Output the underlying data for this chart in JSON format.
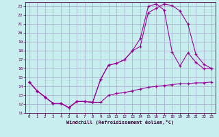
{
  "xlabel": "Windchill (Refroidissement éolien,°C)",
  "background_color": "#c8eef0",
  "grid_color": "#aaaacc",
  "line_color": "#990099",
  "xlim": [
    -0.5,
    23.5
  ],
  "ylim": [
    11,
    23.5
  ],
  "yticks": [
    11,
    12,
    13,
    14,
    15,
    16,
    17,
    18,
    19,
    20,
    21,
    22,
    23
  ],
  "xticks": [
    0,
    1,
    2,
    3,
    4,
    5,
    6,
    7,
    8,
    9,
    10,
    11,
    12,
    13,
    14,
    15,
    16,
    17,
    18,
    19,
    20,
    21,
    22,
    23
  ],
  "line1_x": [
    0,
    1,
    2,
    3,
    4,
    5,
    6,
    7,
    8,
    9,
    10,
    11,
    12,
    13,
    14,
    15,
    16,
    17,
    18,
    19,
    20,
    21,
    22,
    23
  ],
  "line1_y": [
    14.5,
    13.5,
    12.8,
    12.1,
    12.1,
    11.6,
    12.3,
    12.3,
    12.2,
    12.2,
    13.0,
    13.2,
    13.3,
    13.5,
    13.7,
    13.9,
    14.0,
    14.1,
    14.2,
    14.3,
    14.3,
    14.4,
    14.4,
    14.5
  ],
  "line2_x": [
    0,
    1,
    2,
    3,
    4,
    5,
    6,
    7,
    8,
    9,
    10,
    11,
    12,
    13,
    14,
    15,
    16,
    17,
    18,
    19,
    20,
    21,
    22,
    23
  ],
  "line2_y": [
    14.5,
    13.5,
    12.8,
    12.1,
    12.1,
    11.6,
    12.3,
    12.3,
    12.2,
    14.8,
    16.4,
    16.6,
    17.0,
    18.0,
    18.5,
    22.3,
    22.8,
    23.3,
    23.1,
    22.5,
    21.0,
    17.6,
    16.5,
    16.0
  ],
  "line3_x": [
    0,
    1,
    2,
    3,
    4,
    5,
    6,
    7,
    8,
    9,
    10,
    11,
    12,
    13,
    14,
    15,
    16,
    17,
    18,
    19,
    20,
    21,
    22,
    23
  ],
  "line3_y": [
    14.5,
    13.5,
    12.8,
    12.1,
    12.1,
    11.6,
    12.3,
    12.3,
    12.2,
    14.8,
    16.4,
    16.6,
    17.0,
    18.0,
    19.4,
    23.0,
    23.3,
    22.6,
    17.9,
    16.3,
    17.8,
    16.7,
    16.0,
    16.0
  ]
}
